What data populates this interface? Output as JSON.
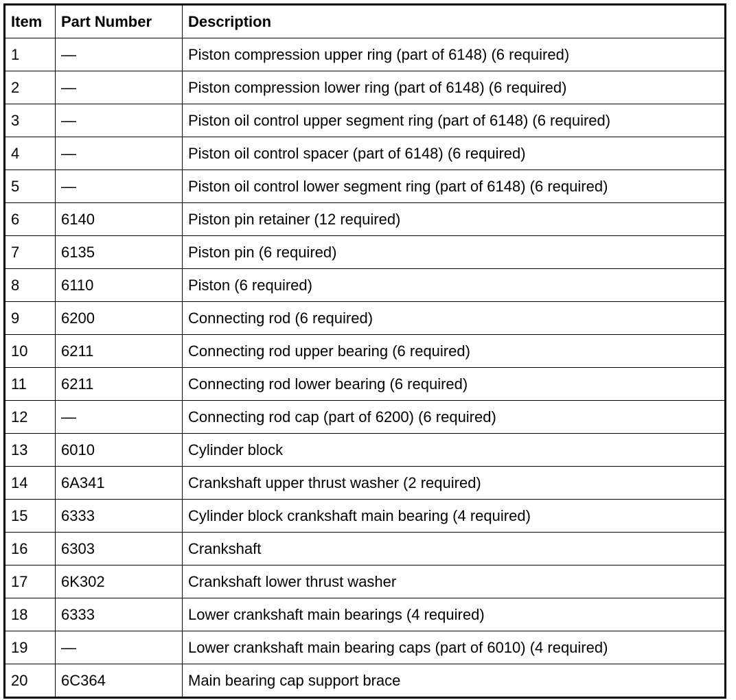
{
  "table": {
    "headers": [
      "Item",
      "Part Number",
      "Description"
    ],
    "rows": [
      [
        "1",
        "—",
        "Piston compression upper ring (part of 6148) (6 required)"
      ],
      [
        "2",
        "—",
        "Piston compression lower ring (part of 6148) (6 required)"
      ],
      [
        "3",
        "—",
        "Piston oil control upper segment ring (part of 6148) (6 required)"
      ],
      [
        "4",
        "—",
        "Piston oil control spacer (part of 6148) (6 required)"
      ],
      [
        "5",
        "—",
        "Piston oil control lower segment ring (part of 6148) (6 required)"
      ],
      [
        "6",
        "6140",
        "Piston pin retainer (12 required)"
      ],
      [
        "7",
        "6135",
        "Piston pin (6 required)"
      ],
      [
        "8",
        "6110",
        "Piston (6 required)"
      ],
      [
        "9",
        "6200",
        "Connecting rod (6 required)"
      ],
      [
        "10",
        "6211",
        "Connecting rod upper bearing (6 required)"
      ],
      [
        "11",
        "6211",
        "Connecting rod lower bearing (6 required)"
      ],
      [
        "12",
        "—",
        "Connecting rod cap (part of 6200) (6 required)"
      ],
      [
        "13",
        "6010",
        "Cylinder block"
      ],
      [
        "14",
        "6A341",
        "Crankshaft upper thrust washer (2 required)"
      ],
      [
        "15",
        "6333",
        "Cylinder block crankshaft main bearing (4 required)"
      ],
      [
        "16",
        "6303",
        "Crankshaft"
      ],
      [
        "17",
        "6K302",
        "Crankshaft lower thrust washer"
      ],
      [
        "18",
        "6333",
        "Lower crankshaft main bearings (4 required)"
      ],
      [
        "19",
        "—",
        "Lower crankshaft main bearing caps (part of 6010) (4 required)"
      ],
      [
        "20",
        "6C364",
        "Main bearing cap support brace"
      ]
    ]
  }
}
